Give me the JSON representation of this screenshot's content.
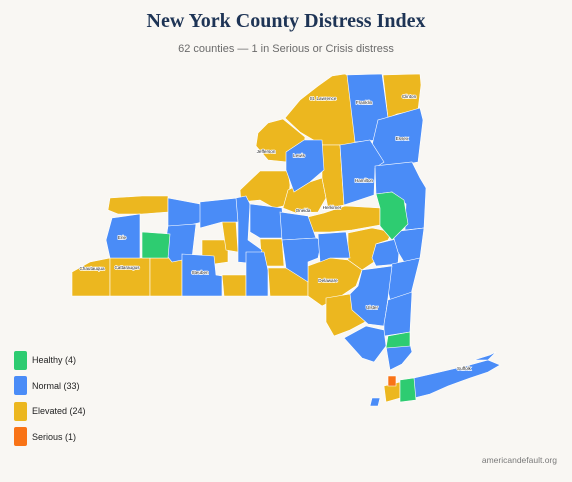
{
  "title": "New York County Distress Index",
  "subtitle": "62 counties — 1 in Serious or Crisis distress",
  "colors": {
    "healthy": "#2ecc71",
    "normal": "#4a8cf7",
    "elevated": "#ecb71f",
    "serious": "#f97316"
  },
  "legend": [
    {
      "label": "Healthy (4)",
      "color": "#2ecc71"
    },
    {
      "label": "Normal (33)",
      "color": "#4a8cf7"
    },
    {
      "label": "Elevated (24)",
      "color": "#ecb71f"
    },
    {
      "label": "Serious (1)",
      "color": "#f97316"
    }
  ],
  "county_labels": {
    "st_lawrence": "St. Lawrence",
    "franklin": "Franklin",
    "clinton": "Clinton",
    "essex": "Essex",
    "jefferson": "Jefferson",
    "lewis": "Lewis",
    "hamilton": "Hamilton",
    "oneida": "Oneida",
    "herkimer": "Herkimer",
    "erie": "Erie",
    "chautauqua": "Chautauqua",
    "cattaraugus": "Cattaraugus",
    "steuben": "Steuben",
    "delaware": "Delaware",
    "ulster": "Ulster",
    "suffolk": "Suffolk"
  },
  "source": "americandefault.org"
}
